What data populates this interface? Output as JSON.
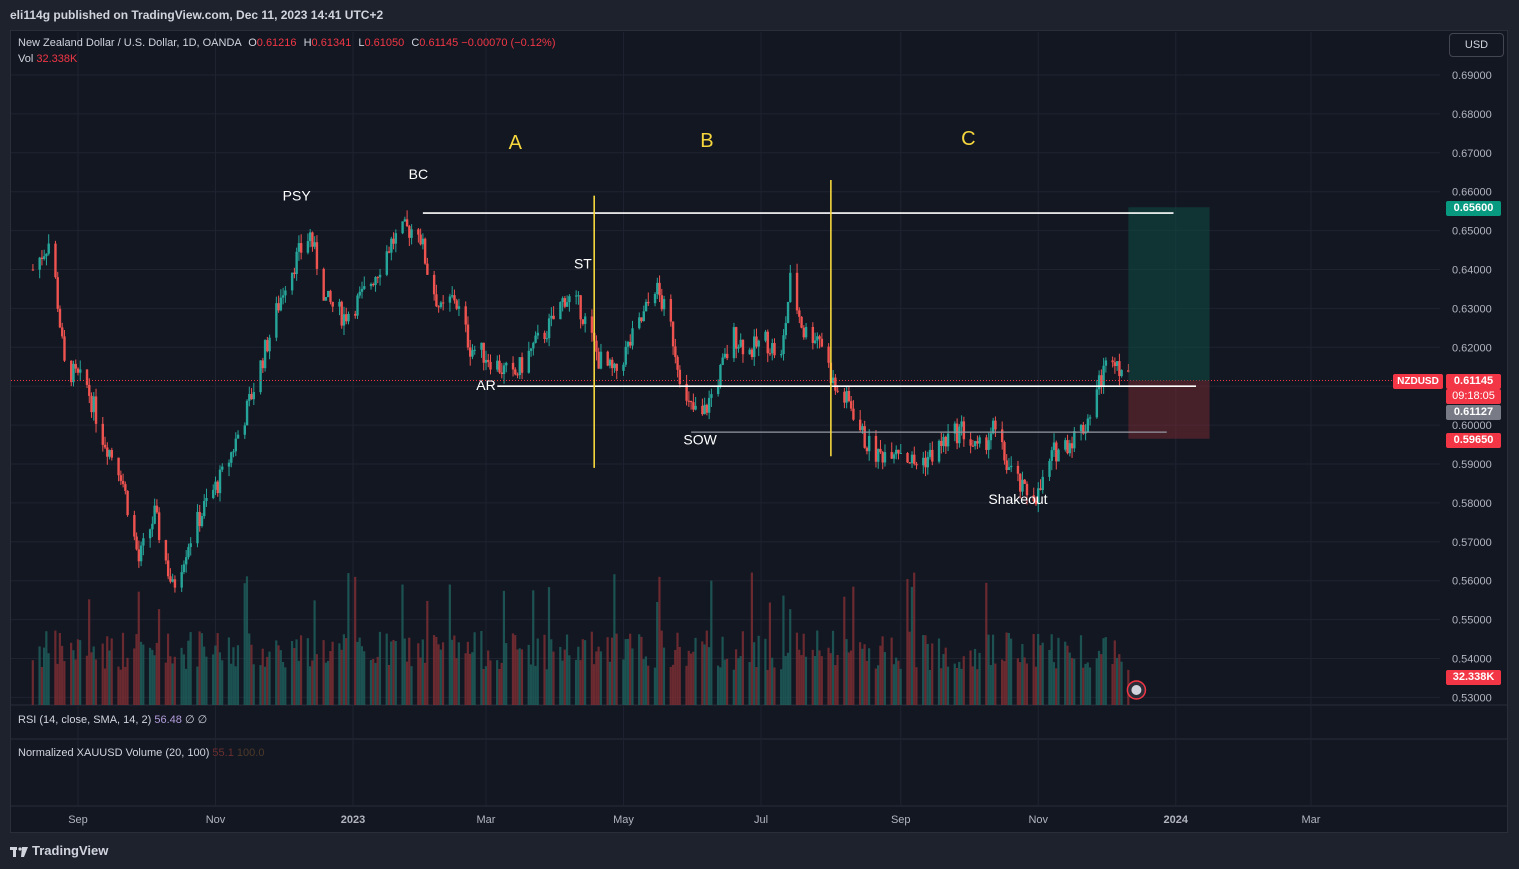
{
  "header": {
    "published": "eli114g published on TradingView.com, Dec 11, 2023 14:41 UTC+2"
  },
  "legend": {
    "symbol": "New Zealand Dollar / U.S. Dollar, 1D, OANDA",
    "o_label": "O",
    "o": "0.61216",
    "h_label": "H",
    "h": "0.61341",
    "l_label": "L",
    "l": "0.61050",
    "c_label": "C",
    "c": "0.61145",
    "change": "−0.00070 (−0.12%)",
    "vol_label": "Vol",
    "vol": "32.338K"
  },
  "currency_button": "USD",
  "rsi": {
    "label": "RSI (14, close, SMA, 14, 2)",
    "value": "56.48",
    "extra": "∅  ∅"
  },
  "norm": {
    "label": "Normalized XAUUSD Volume (20, 100)",
    "value": "55.1",
    "value2": "100.0"
  },
  "price_labels": {
    "target": "0.65600",
    "symbol_tag": "NZDUSD",
    "last": "0.61145",
    "countdown": "09:18:05",
    "crosshair": "0.61127",
    "stop": "0.59650",
    "volume": "32.338K"
  },
  "footer": {
    "brand": "TradingView"
  },
  "colors": {
    "up": "#26a69a",
    "down": "#ef5350",
    "background": "#131722",
    "yellow": "#f5d63d"
  },
  "chart_data": {
    "type": "candlestick",
    "symbol": "NZDUSD",
    "timeframe": "1D",
    "y_ticks": [
      "0.69000",
      "0.68000",
      "0.67000",
      "0.66000",
      "0.65000",
      "0.64000",
      "0.63000",
      "0.62000",
      "0.61000",
      "0.60000",
      "0.59000",
      "0.58000",
      "0.57000",
      "0.56000",
      "0.55000",
      "0.54000",
      "0.53000"
    ],
    "ylim": [
      0.5275,
      0.6935
    ],
    "x_ticks": [
      "Sep",
      "Nov",
      "2023",
      "Mar",
      "May",
      "Jul",
      "Sep",
      "Nov",
      "2024",
      "Mar"
    ],
    "x_ticks_bold": [
      "2023",
      "2024"
    ],
    "close_path": [
      [
        "2022-08-12",
        0.64
      ],
      [
        "2022-08-20",
        0.648
      ],
      [
        "2022-08-26",
        0.615
      ],
      [
        "2022-09-05",
        0.61
      ],
      [
        "2022-09-12",
        0.597
      ],
      [
        "2022-09-20",
        0.588
      ],
      [
        "2022-09-28",
        0.565
      ],
      [
        "2022-10-05",
        0.577
      ],
      [
        "2022-10-13",
        0.558
      ],
      [
        "2022-10-20",
        0.57
      ],
      [
        "2022-10-28",
        0.58
      ],
      [
        "2022-11-05",
        0.588
      ],
      [
        "2022-11-15",
        0.604
      ],
      [
        "2022-11-25",
        0.623
      ],
      [
        "2022-12-02",
        0.637
      ],
      [
        "2022-12-08",
        0.644
      ],
      [
        "2022-12-13",
        0.649
      ],
      [
        "2022-12-20",
        0.632
      ],
      [
        "2022-12-28",
        0.628
      ],
      [
        "2023-01-05",
        0.633
      ],
      [
        "2023-01-12",
        0.64
      ],
      [
        "2023-01-18",
        0.647
      ],
      [
        "2023-01-24",
        0.65
      ],
      [
        "2023-01-30",
        0.651
      ],
      [
        "2023-02-03",
        0.64
      ],
      [
        "2023-02-09",
        0.629
      ],
      [
        "2023-02-15",
        0.633
      ],
      [
        "2023-02-22",
        0.62
      ],
      [
        "2023-03-01",
        0.618
      ],
      [
        "2023-03-07",
        0.615
      ],
      [
        "2023-03-13",
        0.612
      ],
      [
        "2023-03-22",
        0.62
      ],
      [
        "2023-03-30",
        0.626
      ],
      [
        "2023-04-05",
        0.633
      ],
      [
        "2023-04-12",
        0.63
      ],
      [
        "2023-04-20",
        0.617
      ],
      [
        "2023-04-27",
        0.613
      ],
      [
        "2023-05-03",
        0.62
      ],
      [
        "2023-05-10",
        0.628
      ],
      [
        "2023-05-15",
        0.636
      ],
      [
        "2023-05-22",
        0.625
      ],
      [
        "2023-05-29",
        0.605
      ],
      [
        "2023-06-05",
        0.602
      ],
      [
        "2023-06-12",
        0.612
      ],
      [
        "2023-06-19",
        0.623
      ],
      [
        "2023-06-26",
        0.619
      ],
      [
        "2023-07-03",
        0.622
      ],
      [
        "2023-07-10",
        0.617
      ],
      [
        "2023-07-14",
        0.637
      ],
      [
        "2023-07-20",
        0.624
      ],
      [
        "2023-07-27",
        0.623
      ],
      [
        "2023-08-03",
        0.609
      ],
      [
        "2023-08-10",
        0.605
      ],
      [
        "2023-08-16",
        0.596
      ],
      [
        "2023-08-22",
        0.592
      ],
      [
        "2023-08-30",
        0.595
      ],
      [
        "2023-09-07",
        0.59
      ],
      [
        "2023-09-14",
        0.592
      ],
      [
        "2023-09-21",
        0.596
      ],
      [
        "2023-09-28",
        0.599
      ],
      [
        "2023-10-05",
        0.593
      ],
      [
        "2023-10-12",
        0.599
      ],
      [
        "2023-10-18",
        0.59
      ],
      [
        "2023-10-25",
        0.583
      ],
      [
        "2023-11-01",
        0.582
      ],
      [
        "2023-11-08",
        0.593
      ],
      [
        "2023-11-15",
        0.596
      ],
      [
        "2023-11-22",
        0.6
      ],
      [
        "2023-11-28",
        0.611
      ],
      [
        "2023-12-04",
        0.619
      ],
      [
        "2023-12-11",
        0.611
      ]
    ],
    "horizontal_levels": [
      {
        "value": 0.6545,
        "from": "2023-02-01",
        "to": "2023-12-31",
        "color": "#ffffff"
      },
      {
        "value": 0.61,
        "from": "2023-03-06",
        "to": "2024-01-10",
        "color": "#ffffff"
      },
      {
        "value": 0.5982,
        "from": "2023-05-31",
        "to": "2023-12-28",
        "color": "#9598a1"
      }
    ],
    "vertical_lines": [
      {
        "date": "2023-04-18",
        "from": 0.659,
        "to": 0.589
      },
      {
        "date": "2023-08-01",
        "from": 0.663,
        "to": 0.592
      }
    ],
    "phases": [
      {
        "text": "A",
        "date": "2023-03-14",
        "value": 0.671
      },
      {
        "text": "B",
        "date": "2023-06-07",
        "value": 0.6715
      },
      {
        "text": "C",
        "date": "2023-10-01",
        "value": 0.672
      }
    ],
    "annotations": [
      {
        "text": "PSY",
        "date": "2022-12-07",
        "value": 0.6578
      },
      {
        "text": "BC",
        "date": "2023-01-30",
        "value": 0.6633
      },
      {
        "text": "ST",
        "date": "2023-04-13",
        "value": 0.6403
      },
      {
        "text": "AR",
        "date": "2023-03-01",
        "value": 0.609
      },
      {
        "text": "SOW",
        "date": "2023-06-04",
        "value": 0.595
      },
      {
        "text": "Shakeout",
        "date": "2023-10-23",
        "value": 0.5797
      }
    ],
    "position": {
      "entry": 0.6114,
      "target": 0.656,
      "stop": 0.5965,
      "from": "2023-12-11",
      "to": "2024-01-16"
    },
    "volume_last": "32.338K"
  }
}
